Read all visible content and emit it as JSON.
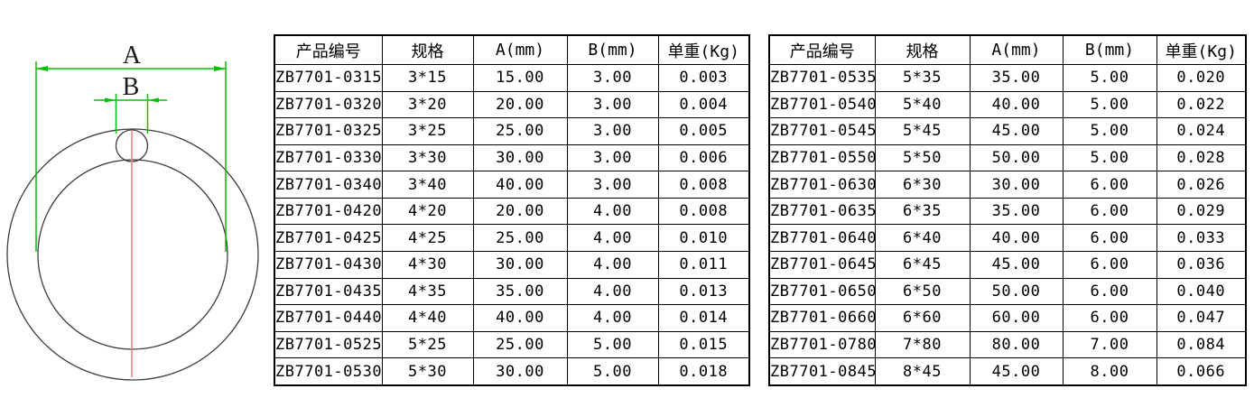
{
  "page": {
    "background": "#ffffff"
  },
  "diagram": {
    "label_a": "A",
    "label_b": "B",
    "colors": {
      "dimension": "#00c200",
      "centerline": "#f08080",
      "outline": "#3d3d3d"
    }
  },
  "tables": [
    {
      "headers": [
        "产品编号",
        "规格",
        "A(mm)",
        "B(mm)",
        "单重(Kg)"
      ],
      "rows": [
        [
          "ZB7701-0315",
          "3*15",
          "15.00",
          "3.00",
          "0.003"
        ],
        [
          "ZB7701-0320",
          "3*20",
          "20.00",
          "3.00",
          "0.004"
        ],
        [
          "ZB7701-0325",
          "3*25",
          "25.00",
          "3.00",
          "0.005"
        ],
        [
          "ZB7701-0330",
          "3*30",
          "30.00",
          "3.00",
          "0.006"
        ],
        [
          "ZB7701-0340",
          "3*40",
          "40.00",
          "3.00",
          "0.008"
        ],
        [
          "ZB7701-0420",
          "4*20",
          "20.00",
          "4.00",
          "0.008"
        ],
        [
          "ZB7701-0425",
          "4*25",
          "25.00",
          "4.00",
          "0.010"
        ],
        [
          "ZB7701-0430",
          "4*30",
          "30.00",
          "4.00",
          "0.011"
        ],
        [
          "ZB7701-0435",
          "4*35",
          "35.00",
          "4.00",
          "0.013"
        ],
        [
          "ZB7701-0440",
          "4*40",
          "40.00",
          "4.00",
          "0.014"
        ],
        [
          "ZB7701-0525",
          "5*25",
          "25.00",
          "5.00",
          "0.015"
        ],
        [
          "ZB7701-0530",
          "5*30",
          "30.00",
          "5.00",
          "0.018"
        ]
      ]
    },
    {
      "headers": [
        "产品编号",
        "规格",
        "A(mm)",
        "B(mm)",
        "单重(Kg)"
      ],
      "rows": [
        [
          "ZB7701-0535",
          "5*35",
          "35.00",
          "5.00",
          "0.020"
        ],
        [
          "ZB7701-0540",
          "5*40",
          "40.00",
          "5.00",
          "0.022"
        ],
        [
          "ZB7701-0545",
          "5*45",
          "45.00",
          "5.00",
          "0.024"
        ],
        [
          "ZB7701-0550",
          "5*50",
          "50.00",
          "5.00",
          "0.028"
        ],
        [
          "ZB7701-0630",
          "6*30",
          "30.00",
          "6.00",
          "0.026"
        ],
        [
          "ZB7701-0635",
          "6*35",
          "35.00",
          "6.00",
          "0.029"
        ],
        [
          "ZB7701-0640",
          "6*40",
          "40.00",
          "6.00",
          "0.033"
        ],
        [
          "ZB7701-0645",
          "6*45",
          "45.00",
          "6.00",
          "0.036"
        ],
        [
          "ZB7701-0650",
          "6*50",
          "50.00",
          "6.00",
          "0.040"
        ],
        [
          "ZB7701-0660",
          "6*60",
          "60.00",
          "6.00",
          "0.047"
        ],
        [
          "ZB7701-0780",
          "7*80",
          "80.00",
          "7.00",
          "0.084"
        ],
        [
          "ZB7701-0845",
          "8*45",
          "45.00",
          "8.00",
          "0.066"
        ]
      ]
    }
  ]
}
